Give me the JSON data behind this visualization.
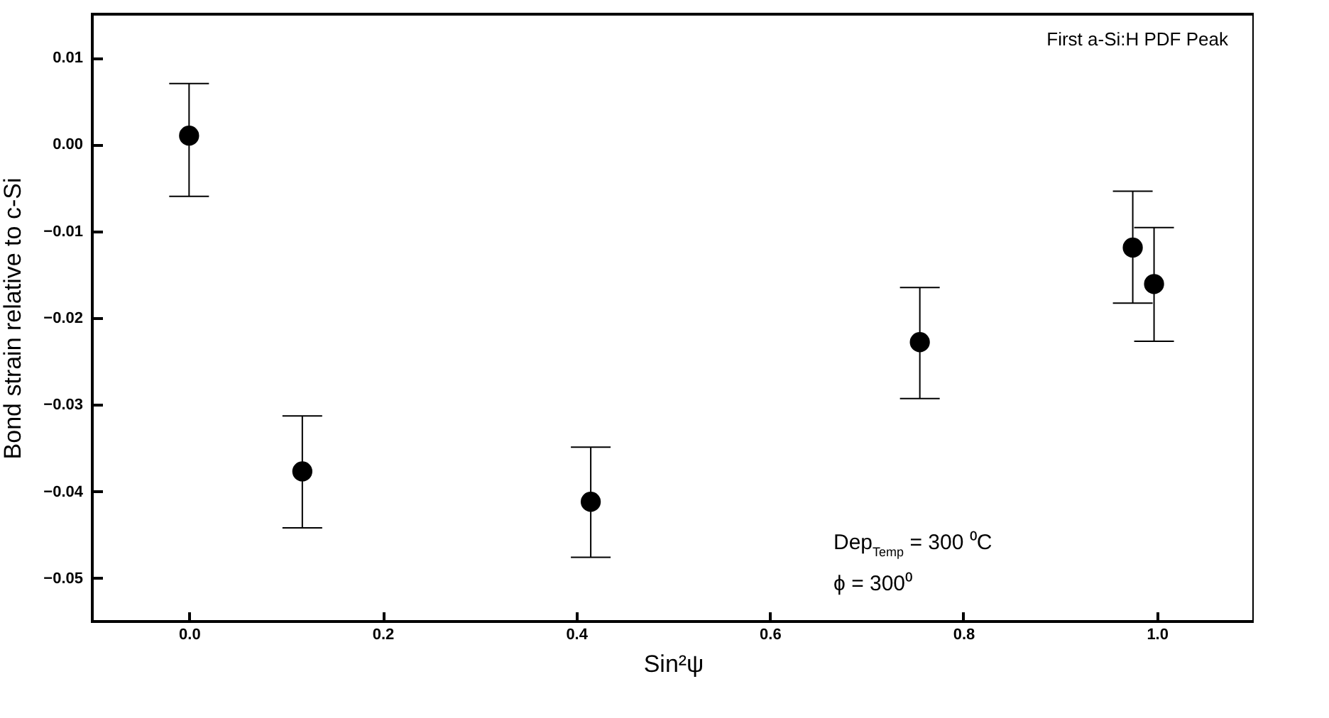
{
  "chart_data": {
    "type": "scatter",
    "xlabel": "Sin²ψ",
    "ylabel": "Bond strain relative to c-Si",
    "x": [
      0.0,
      0.117,
      0.415,
      0.755,
      0.975,
      0.997
    ],
    "values": [
      0.001,
      -0.0377,
      -0.0412,
      -0.0228,
      -0.0119,
      -0.0161
    ],
    "errors": [
      [
        -0.006,
        0.007
      ],
      [
        -0.0442,
        -0.0313
      ],
      [
        -0.0476,
        -0.0349
      ],
      [
        -0.0293,
        -0.0165
      ],
      [
        -0.0183,
        -0.0054
      ],
      [
        -0.0227,
        -0.0096
      ]
    ],
    "color": "#000000",
    "marker": "circle",
    "xlim": [
      -0.1,
      1.1
    ],
    "xticks": [
      {
        "value": 0,
        "label": "0.0"
      },
      0.2,
      0.4,
      0.6,
      0.8,
      {
        "value": 1,
        "label": "1.0"
      }
    ],
    "ylim": [
      -0.055,
      0.015
    ],
    "yticks": [
      -0.05,
      -0.04,
      -0.03,
      -0.02,
      -0.01,
      {
        "value": 0,
        "label": "0.00"
      },
      0.01
    ],
    "annotations": [
      "First a-Si:H PDF Peak",
      "Dep$_{Temp}$ = 300 ⁰C",
      "ϕ = 300⁰"
    ]
  }
}
